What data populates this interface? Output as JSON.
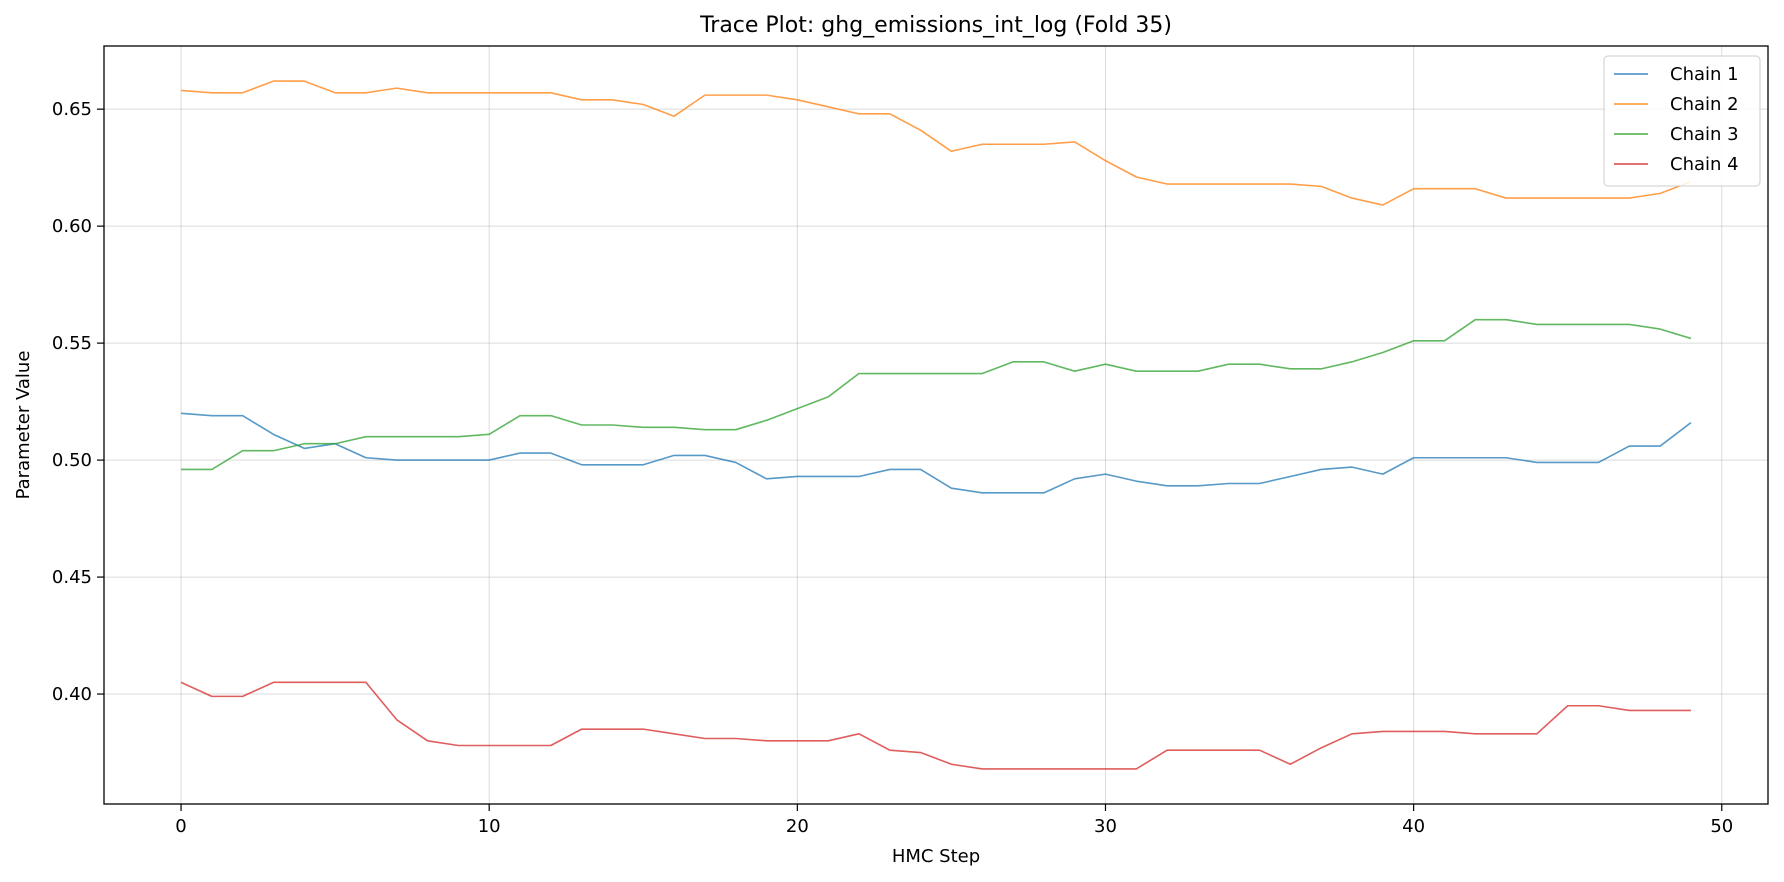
{
  "chart_data": {
    "type": "line",
    "title": "Trace Plot: ghg_emissions_int_log (Fold 35)",
    "xlabel": "HMC Step",
    "ylabel": "Parameter Value",
    "xlim": [
      -2.5,
      51.5
    ],
    "ylim": [
      0.353,
      0.677
    ],
    "xticks": [
      0,
      10,
      20,
      30,
      40,
      50
    ],
    "yticks": [
      0.4,
      0.45,
      0.5,
      0.55,
      0.6,
      0.65
    ],
    "grid": true,
    "legend_position": "top-right",
    "x": [
      0,
      1,
      2,
      3,
      4,
      5,
      6,
      7,
      8,
      9,
      10,
      11,
      12,
      13,
      14,
      15,
      16,
      17,
      18,
      19,
      20,
      21,
      22,
      23,
      24,
      25,
      26,
      27,
      28,
      29,
      30,
      31,
      32,
      33,
      34,
      35,
      36,
      37,
      38,
      39,
      40,
      41,
      42,
      43,
      44,
      45,
      46,
      47,
      48,
      49
    ],
    "series": [
      {
        "name": "Chain 1",
        "color": "#1f77b4",
        "values": [
          0.52,
          0.519,
          0.519,
          0.511,
          0.505,
          0.507,
          0.501,
          0.5,
          0.5,
          0.5,
          0.5,
          0.503,
          0.503,
          0.498,
          0.498,
          0.498,
          0.502,
          0.502,
          0.499,
          0.492,
          0.493,
          0.493,
          0.493,
          0.496,
          0.496,
          0.488,
          0.486,
          0.486,
          0.486,
          0.492,
          0.494,
          0.491,
          0.489,
          0.489,
          0.49,
          0.49,
          0.493,
          0.496,
          0.497,
          0.494,
          0.501,
          0.501,
          0.501,
          0.501,
          0.499,
          0.499,
          0.499,
          0.506,
          0.506,
          0.516
        ]
      },
      {
        "name": "Chain 2",
        "color": "#ff7f0e",
        "values": [
          0.658,
          0.657,
          0.657,
          0.662,
          0.662,
          0.657,
          0.657,
          0.659,
          0.657,
          0.657,
          0.657,
          0.657,
          0.657,
          0.654,
          0.654,
          0.652,
          0.647,
          0.656,
          0.656,
          0.656,
          0.654,
          0.651,
          0.648,
          0.648,
          0.641,
          0.632,
          0.635,
          0.635,
          0.635,
          0.636,
          0.628,
          0.621,
          0.618,
          0.618,
          0.618,
          0.618,
          0.618,
          0.617,
          0.612,
          0.609,
          0.616,
          0.616,
          0.616,
          0.612,
          0.612,
          0.612,
          0.612,
          0.612,
          0.614,
          0.619
        ]
      },
      {
        "name": "Chain 3",
        "color": "#2ca02c",
        "values": [
          0.496,
          0.496,
          0.504,
          0.504,
          0.507,
          0.507,
          0.51,
          0.51,
          0.51,
          0.51,
          0.511,
          0.519,
          0.519,
          0.515,
          0.515,
          0.514,
          0.514,
          0.513,
          0.513,
          0.517,
          0.522,
          0.527,
          0.537,
          0.537,
          0.537,
          0.537,
          0.537,
          0.542,
          0.542,
          0.538,
          0.541,
          0.538,
          0.538,
          0.538,
          0.541,
          0.541,
          0.539,
          0.539,
          0.542,
          0.546,
          0.551,
          0.551,
          0.56,
          0.56,
          0.558,
          0.558,
          0.558,
          0.558,
          0.556,
          0.552
        ]
      },
      {
        "name": "Chain 4",
        "color": "#d62728",
        "values": [
          0.405,
          0.399,
          0.399,
          0.405,
          0.405,
          0.405,
          0.405,
          0.389,
          0.38,
          0.378,
          0.378,
          0.378,
          0.378,
          0.385,
          0.385,
          0.385,
          0.383,
          0.381,
          0.381,
          0.38,
          0.38,
          0.38,
          0.383,
          0.376,
          0.375,
          0.37,
          0.368,
          0.368,
          0.368,
          0.368,
          0.368,
          0.368,
          0.376,
          0.376,
          0.376,
          0.376,
          0.37,
          0.377,
          0.383,
          0.384,
          0.384,
          0.384,
          0.383,
          0.383,
          0.383,
          0.395,
          0.395,
          0.393,
          0.393,
          0.393
        ]
      }
    ]
  }
}
